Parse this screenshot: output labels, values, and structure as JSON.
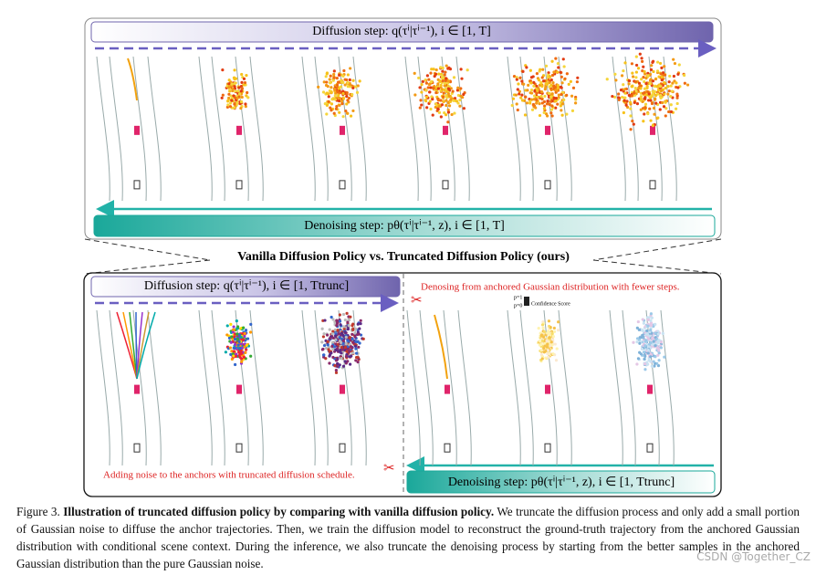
{
  "top_panel": {
    "diffusion_label": "Diffusion step: q(τⁱ|τⁱ⁻¹), i ∈ [1, T]",
    "denoising_label": "Denoising step: pθ(τⁱ|τⁱ⁻¹, z), i ∈ [1, T]"
  },
  "comparison_title": "Vanilla Diffusion Policy vs. Truncated Diffusion Policy (ours)",
  "bottom_panel": {
    "diffusion_label": "Diffusion step: q(τⁱ|τⁱ⁻¹), i ∈ [1, Ttrunc]",
    "denoising_label": "Denoising step: pθ(τⁱ|τⁱ⁻¹, z), i ∈ [1, Ttrunc]",
    "anchored_note": "Denosing from anchored Gaussian distribution with fewer steps.",
    "confidence_legend": {
      "high": "p=1",
      "low": "p=0",
      "label": "Confidence Score"
    },
    "noise_note": "Adding noise to the anchors with truncated diffusion schedule."
  },
  "caption": {
    "label": "Figure 3.",
    "bold": "Illustration of truncated diffusion policy by comparing with vanilla diffusion policy.",
    "text": "We truncate the diffusion process and only add a small portion of Gaussian noise to diffuse the anchor trajectories. Then, we train the diffusion model to reconstruct the ground-truth trajectory from the anchored Gaussian distribution with conditional scene context. During the inference, we also truncate the denoising process by starting from the better samples in the anchored Gaussian distribution than the pure Gaussian noise."
  },
  "watermark": "CSDN @Together_CZ"
}
